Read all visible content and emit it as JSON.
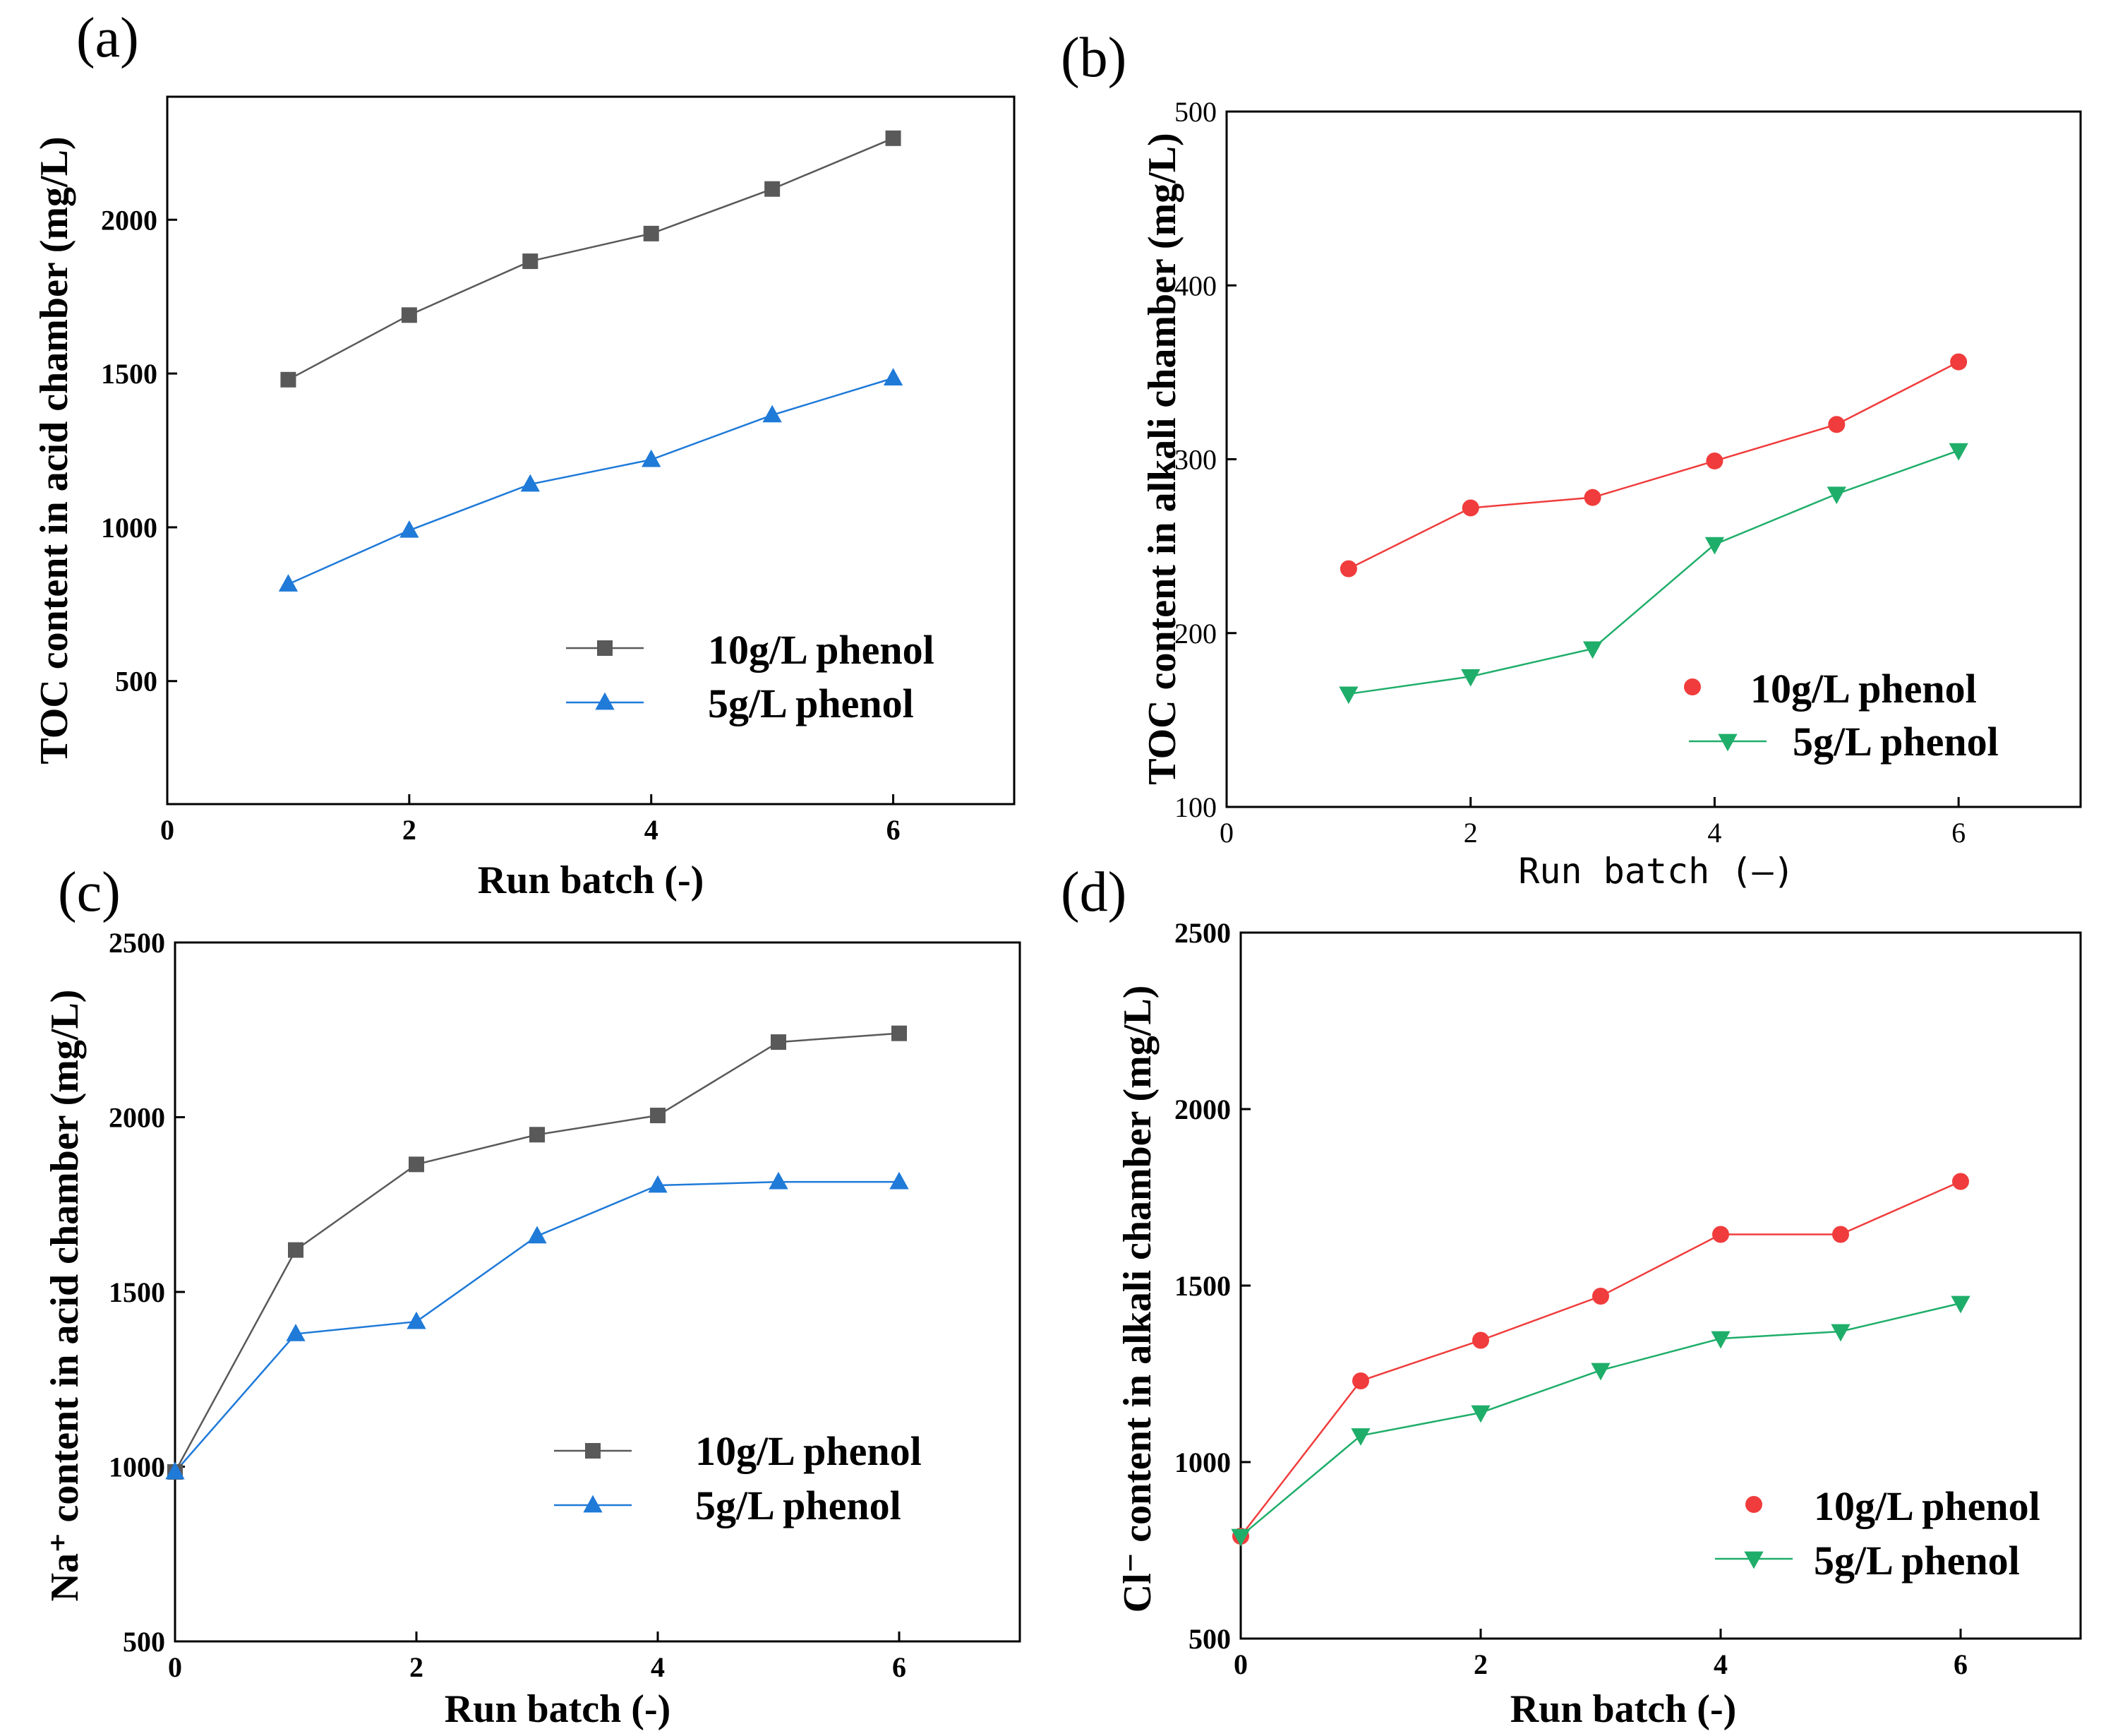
{
  "chart_data": [
    {
      "panel": "(a)",
      "type": "line",
      "xlabel": "Run batch (-)",
      "ylabel": "TOC content in acid chamber (mg/L)",
      "xlim": [
        0,
        7
      ],
      "ylim": [
        100,
        2400
      ],
      "xticks": [
        0,
        2,
        4,
        6
      ],
      "yticks": [
        500,
        1000,
        1500,
        2000
      ],
      "xtick_labels": [
        "0",
        "2",
        "4",
        "6"
      ],
      "ytick_labels": [
        "500",
        "1000",
        "1500",
        "2000"
      ],
      "legend_position": "lower-right",
      "series": [
        {
          "name": "10g/L phenol",
          "color": "#595959",
          "marker": "square",
          "x": [
            1,
            2,
            3,
            4,
            5,
            6
          ],
          "values": [
            1480,
            1690,
            1865,
            1955,
            2100,
            2265
          ]
        },
        {
          "name": "5g/L phenol",
          "color": "#1f7ad8",
          "marker": "triangle-up",
          "x": [
            1,
            2,
            3,
            4,
            5,
            6
          ],
          "values": [
            815,
            990,
            1140,
            1220,
            1365,
            1485
          ]
        }
      ]
    },
    {
      "panel": "(b)",
      "type": "line",
      "xlabel": "Run batch (–)",
      "ylabel": "TOC content in alkali chamber (mg/L)",
      "xlim": [
        0,
        7
      ],
      "ylim": [
        100,
        500
      ],
      "xticks": [
        0,
        2,
        4,
        6
      ],
      "yticks": [
        100,
        200,
        300,
        400,
        500
      ],
      "xtick_labels": [
        "0",
        "2",
        "4",
        "6"
      ],
      "ytick_labels": [
        "100",
        "200",
        "300",
        "400",
        "500"
      ],
      "legend_position": "lower-right",
      "series": [
        {
          "name": "10g/L phenol",
          "color": "#f03c3c",
          "marker": "circle",
          "x": [
            1,
            2,
            3,
            4,
            5,
            6
          ],
          "values": [
            237,
            272,
            278,
            299,
            320,
            356
          ]
        },
        {
          "name": "5g/L phenol",
          "color": "#1fae6a",
          "marker": "triangle-down",
          "x": [
            1,
            2,
            3,
            4,
            5,
            6
          ],
          "values": [
            165,
            175,
            191,
            251,
            280,
            305
          ]
        }
      ]
    },
    {
      "panel": "(c)",
      "type": "line",
      "xlabel": "Run batch (-)",
      "ylabel": "Na⁺ content in acid chamber (mg/L)",
      "xlim": [
        0,
        7
      ],
      "ylim": [
        500,
        2500
      ],
      "xticks": [
        0,
        2,
        4,
        6
      ],
      "yticks": [
        500,
        1000,
        1500,
        2000,
        2500
      ],
      "xtick_labels": [
        "0",
        "2",
        "4",
        "6"
      ],
      "ytick_labels": [
        "500",
        "1000",
        "1500",
        "2000",
        "2500"
      ],
      "legend_position": "lower-right",
      "series": [
        {
          "name": "10g/L phenol",
          "color": "#595959",
          "marker": "square",
          "x": [
            0,
            1,
            2,
            3,
            4,
            5,
            6
          ],
          "values": [
            985,
            1620,
            1865,
            1950,
            2005,
            2215,
            2240
          ]
        },
        {
          "name": "5g/L phenol",
          "color": "#1f7ad8",
          "marker": "triangle-up",
          "x": [
            0,
            1,
            2,
            3,
            4,
            5,
            6
          ],
          "values": [
            985,
            1380,
            1415,
            1660,
            1805,
            1815,
            1815
          ]
        }
      ]
    },
    {
      "panel": "(d)",
      "type": "line",
      "xlabel": "Run batch (-)",
      "ylabel": "Cl⁻ content in alkali chamber (mg/L)",
      "xlim": [
        0,
        7
      ],
      "ylim": [
        500,
        2500
      ],
      "xticks": [
        0,
        2,
        4,
        6
      ],
      "yticks": [
        500,
        1000,
        1500,
        2000,
        2500
      ],
      "xtick_labels": [
        "0",
        "2",
        "4",
        "6"
      ],
      "ytick_labels": [
        "500",
        "1000",
        "1500",
        "2000",
        "2500"
      ],
      "legend_position": "lower-right",
      "series": [
        {
          "name": "10g/L phenol",
          "color": "#f03c3c",
          "marker": "circle",
          "x": [
            0,
            1,
            2,
            3,
            4,
            5,
            6
          ],
          "values": [
            790,
            1230,
            1345,
            1470,
            1645,
            1645,
            1795
          ]
        },
        {
          "name": "5g/L phenol",
          "color": "#1fae6a",
          "marker": "triangle-down",
          "x": [
            0,
            1,
            2,
            3,
            4,
            5,
            6
          ],
          "values": [
            790,
            1075,
            1140,
            1260,
            1350,
            1370,
            1450
          ]
        }
      ]
    }
  ]
}
